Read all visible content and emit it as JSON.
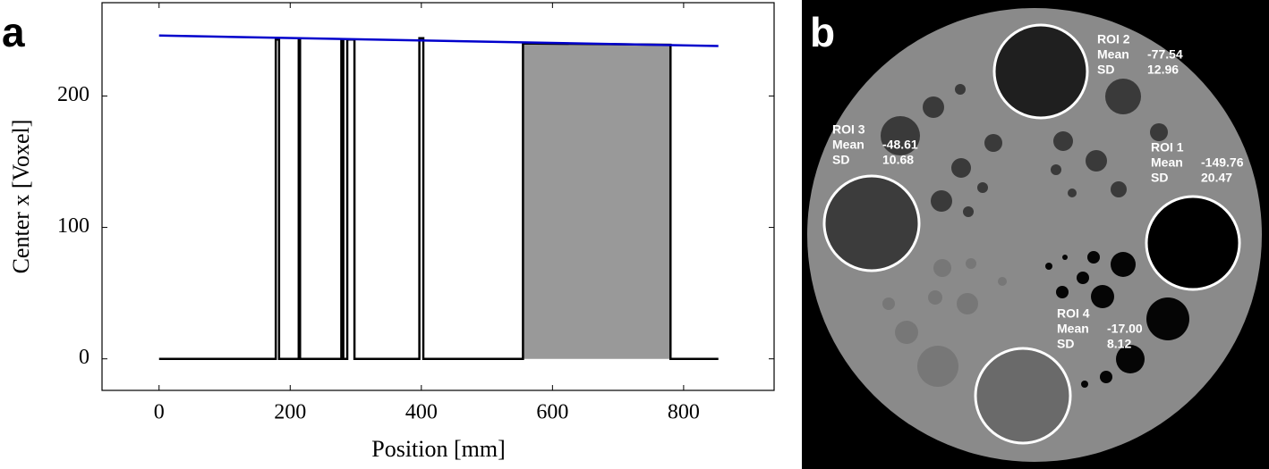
{
  "chart_data": {
    "type": "line",
    "panel_label": "a",
    "x_label": "Position [mm]",
    "y_label": "Center x [Voxel]",
    "xlim": [
      -87,
      938
    ],
    "ylim": [
      -24,
      271
    ],
    "xticks": [
      0,
      200,
      400,
      600,
      800
    ],
    "yticks": [
      0,
      100,
      200
    ],
    "grid": false,
    "series": [
      {
        "type": "area",
        "color": "#999999",
        "x": [
          555,
          780
        ],
        "values": [
          240,
          239
        ]
      },
      {
        "type": "line",
        "color": "#000000",
        "x": [
          0,
          178,
          178,
          183,
          183,
          213,
          213,
          215,
          215,
          278,
          278,
          281,
          281,
          287,
          287,
          298,
          298,
          397,
          397,
          403,
          403,
          555,
          555,
          780,
          780,
          853
        ],
        "values": [
          0,
          0,
          243,
          243,
          0,
          0,
          243,
          243,
          0,
          0,
          243,
          243,
          0,
          0,
          243,
          243,
          0,
          0,
          244,
          244,
          0,
          0,
          240,
          239,
          0,
          0
        ]
      },
      {
        "type": "line",
        "color": "#0000cc",
        "x": [
          0,
          853
        ],
        "values": [
          246,
          238
        ]
      }
    ]
  },
  "image": {
    "panel_label": "b",
    "rois": [
      {
        "name": "ROI 2",
        "mean_label": "Mean",
        "mean": "-77.54",
        "sd_label": "SD",
        "sd": "12.96"
      },
      {
        "name": "ROI 3",
        "mean_label": "Mean",
        "mean": "-48.61",
        "sd_label": "SD",
        "sd": "10.68"
      },
      {
        "name": "ROI 1",
        "mean_label": "Mean",
        "mean": "-149.76",
        "sd_label": "SD",
        "sd": "20.47"
      },
      {
        "name": "ROI 4",
        "mean_label": "Mean",
        "mean": "-17.00",
        "sd_label": "SD",
        "sd": "8.12"
      }
    ]
  }
}
